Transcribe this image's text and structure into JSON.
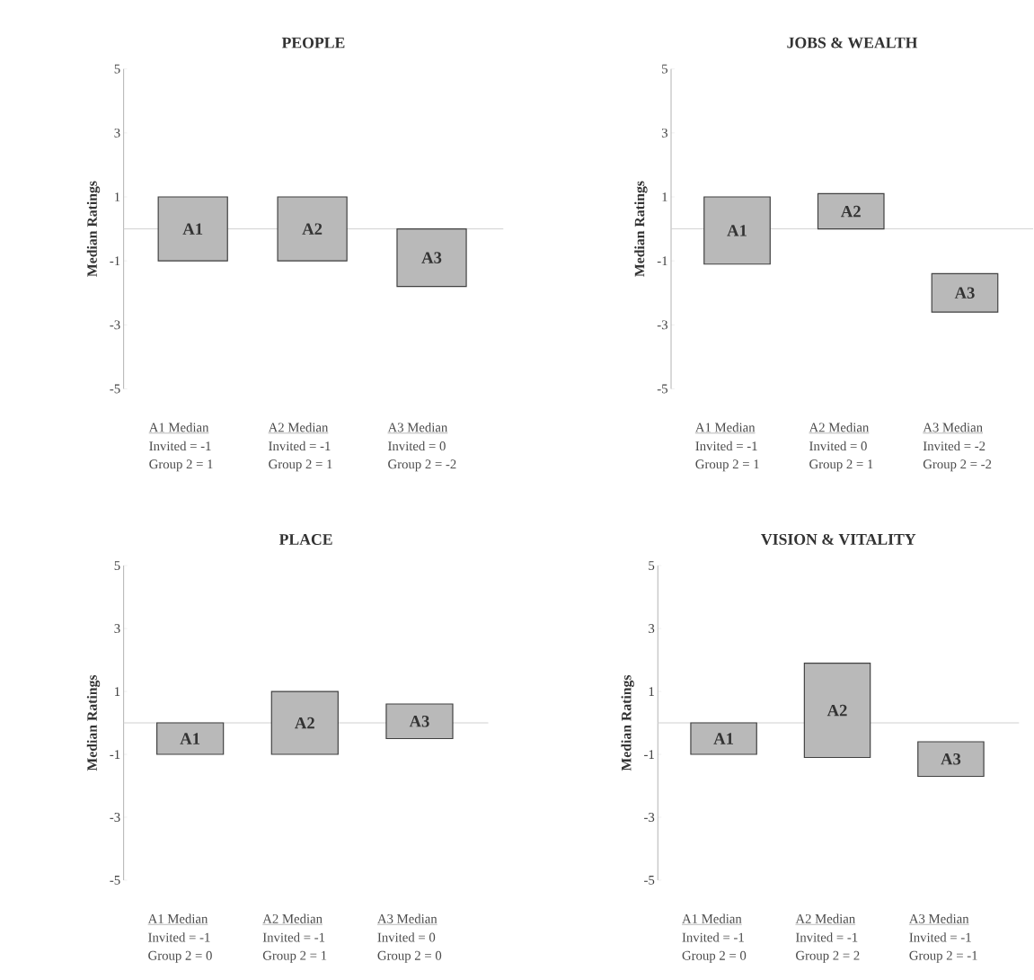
{
  "chart_data": [
    {
      "type": "bar",
      "title": "PEOPLE",
      "ylabel": "Median Ratings",
      "categories": [
        "A1",
        "A2",
        "A3"
      ],
      "base": [
        -1,
        -1,
        -1.8
      ],
      "values": [
        2,
        2,
        1.8
      ],
      "color": "#b9b9b9",
      "ylim": [
        -5,
        5
      ],
      "yticks": [
        -5,
        -3,
        -1,
        1,
        3,
        5
      ],
      "tick_labels": "y",
      "ref_lines": [
        {
          "axis": "y",
          "value": 0,
          "color": "#d0d0d0"
        }
      ],
      "annotations": [
        "A1 Median",
        "Invited = -1",
        "Group 2 = 1",
        "A2 Median",
        "Invited = -1",
        "Group 2 = 1",
        "A3 Median",
        "Invited = 0",
        "Group 2 = -2"
      ]
    },
    {
      "type": "bar",
      "title": "JOBS & WEALTH",
      "ylabel": "Median Ratings",
      "categories": [
        "A1",
        "A2",
        "A3"
      ],
      "base": [
        -1.1,
        0,
        -2.6
      ],
      "values": [
        2.1,
        1.1,
        1.2
      ],
      "color": "#b9b9b9",
      "ylim": [
        -5,
        5
      ],
      "yticks": [
        -5,
        -3,
        -1,
        1,
        3,
        5
      ],
      "tick_labels": "y",
      "ref_lines": [
        {
          "axis": "y",
          "value": 0,
          "color": "#d0d0d0"
        }
      ],
      "annotations": [
        "A1 Median",
        "Invited = -1",
        "Group 2 = 1",
        "A2 Median",
        "Invited = 0",
        "Group 2 = 1",
        "A3 Median",
        "Invited = -2",
        "Group 2 = -2"
      ]
    },
    {
      "type": "bar",
      "title": "PLACE",
      "ylabel": "Median Ratings",
      "categories": [
        "A1",
        "A2",
        "A3"
      ],
      "base": [
        -1,
        -1,
        -0.5
      ],
      "values": [
        1,
        2,
        1.1
      ],
      "color": "#b9b9b9",
      "ylim": [
        -5,
        5
      ],
      "yticks": [
        -5,
        -3,
        -1,
        1,
        3,
        5
      ],
      "tick_labels": "y",
      "ref_lines": [
        {
          "axis": "y",
          "value": 0,
          "color": "#d0d0d0"
        }
      ],
      "annotations": [
        "A1 Median",
        "Invited = -1",
        "Group 2 = 0",
        "A2 Median",
        "Invited = -1",
        "Group 2 = 1",
        "A3 Median",
        "Invited = 0",
        "Group 2 = 0"
      ]
    },
    {
      "type": "bar",
      "title": "VISION & VITALITY",
      "ylabel": "Median Ratings",
      "categories": [
        "A1",
        "A2",
        "A3"
      ],
      "base": [
        -1,
        -1.1,
        -1.7
      ],
      "values": [
        1,
        3.0,
        1.1
      ],
      "color": "#b9b9b9",
      "ylim": [
        -5,
        5
      ],
      "yticks": [
        -5,
        -3,
        -1,
        1,
        3,
        5
      ],
      "tick_labels": "y",
      "ref_lines": [
        {
          "axis": "y",
          "value": 0,
          "color": "#d0d0d0"
        }
      ],
      "annotations": [
        "A1 Median",
        "Invited = -1",
        "Group 2 = 0",
        "A2 Median",
        "Invited = -1",
        "Group 2 = 2",
        "A3 Median",
        "Invited = -1",
        "Group 2 = -1"
      ]
    }
  ]
}
